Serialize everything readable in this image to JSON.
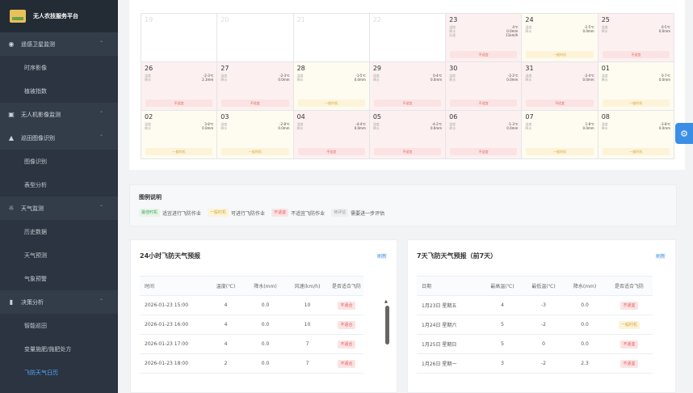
{
  "sidebar": {
    "title": "无人农技服务平台",
    "items": [
      {
        "type": "group",
        "icon": "eye-icon",
        "label": "遥感卫星监测"
      },
      {
        "type": "item",
        "label": "时序影像"
      },
      {
        "type": "item",
        "label": "植被指数"
      },
      {
        "type": "group",
        "icon": "camera-icon",
        "label": "无人机影像监测"
      },
      {
        "type": "group",
        "icon": "car-icon",
        "label": "巡田图像识别"
      },
      {
        "type": "item",
        "label": "图像识别"
      },
      {
        "type": "item",
        "label": "表型分析"
      },
      {
        "type": "group",
        "icon": "sun-icon",
        "label": "天气监测"
      },
      {
        "type": "item",
        "label": "历史数据"
      },
      {
        "type": "item",
        "label": "天气预测"
      },
      {
        "type": "item",
        "label": "气象预警"
      },
      {
        "type": "group",
        "icon": "bar-chart-icon",
        "label": "决策分析"
      },
      {
        "type": "item",
        "label": "智能巡田"
      },
      {
        "type": "item",
        "label": "变量施肥/施肥处方"
      },
      {
        "type": "item",
        "label": "飞防天气日历",
        "active": true
      }
    ]
  },
  "calendar": {
    "cells": [
      {
        "day": "19",
        "empty": true
      },
      {
        "day": "20",
        "empty": true
      },
      {
        "day": "21",
        "empty": true
      },
      {
        "day": "22",
        "empty": true
      },
      {
        "day": "23",
        "r1l": "温度",
        "r1v": "4℃",
        "r2l": "降水",
        "r2v": "0.0mm",
        "r3l": "风速",
        "r3v": "11km/h",
        "tag": "不适宜",
        "tone": "red"
      },
      {
        "day": "24",
        "r1l": "温度",
        "r1v": "-2-5℃",
        "r2l": "降水",
        "r2v": "0.0mm",
        "tag": "一般时机",
        "tone": "yel"
      },
      {
        "day": "25",
        "r1l": "温度",
        "r1v": "0-5℃",
        "r2l": "降水",
        "r2v": "0.0mm",
        "tag": "不适宜",
        "tone": "red"
      },
      {
        "day": "26",
        "r1l": "温度",
        "r1v": "-2-3℃",
        "r2l": "降水",
        "r2v": "2.3mm",
        "tag": "不适宜",
        "tone": "red"
      },
      {
        "day": "27",
        "r1l": "温度",
        "r1v": "-2-3℃",
        "r2l": "降水",
        "r2v": "0.0mm",
        "tag": "不适宜",
        "tone": "red"
      },
      {
        "day": "28",
        "r1l": "温度",
        "r1v": "-1-5℃",
        "r2l": "降水",
        "r2v": "0.0mm",
        "tag": "一般时机",
        "tone": "yel"
      },
      {
        "day": "29",
        "r1l": "温度",
        "r1v": "0-4℃",
        "r2l": "降水",
        "r2v": "0.0mm",
        "tag": "不适宜",
        "tone": "red"
      },
      {
        "day": "30",
        "r1l": "温度",
        "r1v": "-2-2℃",
        "r2l": "降水",
        "r2v": "0.0mm",
        "tag": "不适宜",
        "tone": "red"
      },
      {
        "day": "31",
        "r1l": "温度",
        "r1v": "-2-4℃",
        "r2l": "降水",
        "r2v": "0.0mm",
        "tag": "不适宜",
        "tone": "red"
      },
      {
        "day": "01",
        "r1l": "温度",
        "r1v": "0-7℃",
        "r2l": "降水",
        "r2v": "0.0mm",
        "tag": "一般时机",
        "tone": "yel"
      },
      {
        "day": "02",
        "r1l": "温度",
        "r1v": "3-8℃",
        "r2l": "降水",
        "r2v": "0.0mm",
        "tag": "一般时机",
        "tone": "yel"
      },
      {
        "day": "03",
        "r1l": "温度",
        "r1v": "-2-8℃",
        "r2l": "降水",
        "r2v": "0.0mm",
        "tag": "一般时机",
        "tone": "yel"
      },
      {
        "day": "04",
        "r1l": "温度",
        "r1v": "-4-4℃",
        "r2l": "降水",
        "r2v": "0.0mm",
        "tag": "不适宜",
        "tone": "red"
      },
      {
        "day": "05",
        "r1l": "温度",
        "r1v": "-4-2℃",
        "r2l": "降水",
        "r2v": "0.0mm",
        "tag": "不适宜",
        "tone": "red"
      },
      {
        "day": "06",
        "r1l": "温度",
        "r1v": "-1-3℃",
        "r2l": "降水",
        "r2v": "0.0mm",
        "tag": "不适宜",
        "tone": "red"
      },
      {
        "day": "07",
        "r1l": "温度",
        "r1v": "1-8℃",
        "r2l": "降水",
        "r2v": "0.0mm",
        "tag": "一般时机",
        "tone": "yel"
      },
      {
        "day": "08",
        "r1l": "温度",
        "r1v": "-3-8℃",
        "r2l": "降水",
        "r2v": "0.0mm",
        "tag": "一般时机",
        "tone": "yel"
      }
    ]
  },
  "legend": {
    "title": "图例说明",
    "items": [
      {
        "tag": "最佳时机",
        "text": "适宜进行飞防作业",
        "tone": "g"
      },
      {
        "tag": "一般时机",
        "text": "可进行飞防作业",
        "tone": "y"
      },
      {
        "tag": "不适宜",
        "text": "不适宜飞防作业",
        "tone": "r"
      },
      {
        "tag": "待评估",
        "text": "需要进一步评估",
        "tone": "gr"
      }
    ]
  },
  "panel24": {
    "title": "24小时飞防天气预报",
    "refresh": "刷新",
    "headers": [
      "时间",
      "温度(℃)",
      "降水(mm)",
      "风速(km/h)",
      "是否适合飞防"
    ],
    "rows": [
      [
        "2026-01-23 15:00",
        "4",
        "0.0",
        "10",
        "不适合"
      ],
      [
        "2026-01-23 16:00",
        "4",
        "0.0",
        "10",
        "不适合"
      ],
      [
        "2026-01-23 17:00",
        "4",
        "0.0",
        "7",
        "不适合"
      ],
      [
        "2026-01-23 18:00",
        "2",
        "0.0",
        "7",
        "不适合"
      ]
    ]
  },
  "panel7": {
    "title": "7天飞防天气预报（前7天）",
    "refresh": "刷新",
    "headers": [
      "日期",
      "最高温(℃)",
      "最低温(℃)",
      "降水(mm)",
      "是否适合飞防"
    ],
    "rows": [
      [
        "1月23日 星期五",
        "4",
        "-3",
        "0.0",
        "不适宜",
        "red"
      ],
      [
        "1月24日 星期六",
        "5",
        "-2",
        "0.0",
        "一般时机",
        "yel"
      ],
      [
        "1月25日 星期日",
        "5",
        "0",
        "0.0",
        "不适宜",
        "red"
      ],
      [
        "1月26日 星期一",
        "3",
        "-2",
        "2.3",
        "不适宜",
        "red"
      ]
    ]
  },
  "float_button": {
    "icon": "gear-icon"
  }
}
